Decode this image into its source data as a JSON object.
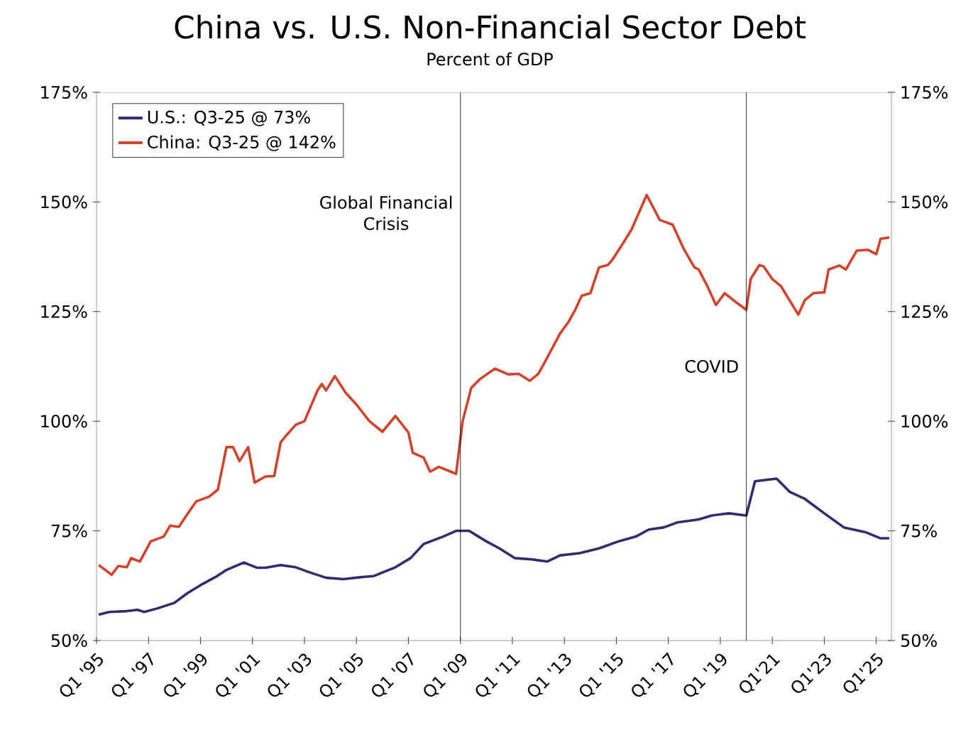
{
  "chart_data": {
    "type": "line",
    "title": "China vs. U.S. Non-Financial Sector Debt",
    "subtitle": "Percent of GDP",
    "xlim": [
      "1995-01",
      "2025-08"
    ],
    "xticks": [
      {
        "value": "1995-01",
        "label": "Q1 '95"
      },
      {
        "value": "1997-01",
        "label": "Q1 '97"
      },
      {
        "value": "1999-01",
        "label": "Q1 '99"
      },
      {
        "value": "2001-01",
        "label": "Q1 '01"
      },
      {
        "value": "2003-01",
        "label": "Q1 '03"
      },
      {
        "value": "2005-01",
        "label": "Q1 '05"
      },
      {
        "value": "2007-01",
        "label": "Q1 '07"
      },
      {
        "value": "2009-01",
        "label": "Q1 '09"
      },
      {
        "value": "2011-01",
        "label": "Q1 '11"
      },
      {
        "value": "2013-01",
        "label": "Q1 '13"
      },
      {
        "value": "2015-01",
        "label": "Q1 '15"
      },
      {
        "value": "2017-01",
        "label": "Q1 '17"
      },
      {
        "value": "2019-01",
        "label": "Q1 '19"
      },
      {
        "value": "2021-01",
        "label": "Q1'21"
      },
      {
        "value": "2023-01",
        "label": "Q1'23"
      },
      {
        "value": "2025-01",
        "label": "Q1'25"
      }
    ],
    "ylim": [
      50,
      175
    ],
    "yticks": [
      {
        "value": 50,
        "label": "50%"
      },
      {
        "value": 75,
        "label": "75%"
      },
      {
        "value": 100,
        "label": "100%"
      },
      {
        "value": 125,
        "label": "125%"
      },
      {
        "value": 150,
        "label": "150%"
      },
      {
        "value": 175,
        "label": "175%"
      }
    ],
    "y2lim": [
      50,
      175
    ],
    "y2ticks": [
      {
        "value": 50,
        "label": "50%"
      },
      {
        "value": 75,
        "label": "75%"
      },
      {
        "value": 100,
        "label": "100%"
      },
      {
        "value": 125,
        "label": "125%"
      },
      {
        "value": 150,
        "label": "150%"
      },
      {
        "value": 175,
        "label": "175%"
      }
    ],
    "grid": false,
    "legend": "top left",
    "marker": "none",
    "line_style": "solid",
    "ref_lines": [
      {
        "axis": "x",
        "value": "2009-01",
        "label": "Global Financial Crisis",
        "color": "#000000"
      },
      {
        "axis": "x",
        "value": "2020-01",
        "label": "COVID",
        "color": "#000000"
      }
    ],
    "series": [
      {
        "name": "U.S.: Q3-25 @ 73%",
        "color": "#312b70",
        "x": [
          "1995-02",
          "1995-07",
          "1996-03",
          "1996-08",
          "1996-11",
          "1997-05",
          "1998-01",
          "1998-07",
          "1999-02",
          "1999-08",
          "2000-01",
          "2000-09",
          "2001-03",
          "2001-07",
          "2002-02",
          "2002-09",
          "2003-03",
          "2003-11",
          "2004-07",
          "2005-04",
          "2005-09",
          "2006-07",
          "2007-02",
          "2007-08",
          "2008-05",
          "2008-11",
          "2009-05",
          "2010-01",
          "2010-07",
          "2011-02",
          "2011-10",
          "2012-05",
          "2012-11",
          "2013-08",
          "2014-05",
          "2015-02",
          "2015-10",
          "2016-04",
          "2016-11",
          "2017-05",
          "2018-03",
          "2018-09",
          "2019-05",
          "2020-01",
          "2020-05",
          "2021-03",
          "2021-09",
          "2022-04",
          "2023-01",
          "2023-10",
          "2024-08",
          "2025-03",
          "2025-07"
        ],
        "values": [
          55.9,
          56.5,
          56.7,
          57.0,
          56.5,
          57.3,
          58.6,
          60.8,
          62.9,
          64.5,
          66.1,
          67.8,
          66.6,
          66.6,
          67.2,
          66.7,
          65.6,
          64.3,
          64.0,
          64.5,
          64.7,
          66.7,
          68.8,
          72.0,
          73.7,
          75.0,
          75.0,
          72.6,
          71.0,
          68.8,
          68.5,
          68.0,
          69.4,
          69.9,
          71.0,
          72.6,
          73.7,
          75.3,
          75.8,
          76.9,
          77.6,
          78.5,
          79.0,
          78.5,
          86.3,
          86.9,
          83.9,
          82.3,
          79.0,
          75.8,
          74.7,
          73.3,
          73.3
        ]
      },
      {
        "name": "China: Q3-25 @ 142%",
        "color": "#d2432b",
        "x": [
          "1995-02",
          "1995-08",
          "1995-11",
          "1996-03",
          "1996-05",
          "1996-09",
          "1997-02",
          "1997-08",
          "1997-11",
          "1998-03",
          "1998-08",
          "1998-11",
          "1999-05",
          "1999-09",
          "2000-01",
          "2000-04",
          "2000-07",
          "2000-11",
          "2001-02",
          "2001-07",
          "2001-11",
          "2002-02",
          "2002-05",
          "2002-09",
          "2003-01",
          "2003-07",
          "2003-09",
          "2003-11",
          "2004-03",
          "2004-08",
          "2005-01",
          "2005-07",
          "2006-01",
          "2006-07",
          "2007-01",
          "2007-03",
          "2007-08",
          "2007-11",
          "2008-03",
          "2008-11",
          "2009-02",
          "2009-06",
          "2009-10",
          "2010-05",
          "2010-11",
          "2011-04",
          "2011-09",
          "2012-01",
          "2012-04",
          "2012-11",
          "2013-03",
          "2013-06",
          "2013-09",
          "2014-01",
          "2014-05",
          "2014-09",
          "2014-11",
          "2015-04",
          "2015-08",
          "2016-03",
          "2016-09",
          "2017-03",
          "2017-08",
          "2018-01",
          "2018-03",
          "2018-07",
          "2018-11",
          "2019-03",
          "2019-07",
          "2020-01",
          "2020-03",
          "2020-07",
          "2020-09",
          "2021-01",
          "2021-05",
          "2022-01",
          "2022-04",
          "2022-08",
          "2023-01",
          "2023-03",
          "2023-08",
          "2023-11",
          "2024-04",
          "2024-09",
          "2025-01",
          "2025-03",
          "2025-07"
        ],
        "values": [
          67.2,
          65.0,
          67.0,
          66.7,
          68.8,
          68.0,
          72.6,
          73.7,
          76.2,
          75.9,
          79.6,
          81.7,
          82.8,
          84.4,
          94.1,
          94.1,
          90.9,
          94.1,
          86.0,
          87.4,
          87.5,
          95.2,
          97.0,
          99.2,
          100.0,
          107.0,
          108.5,
          107.0,
          110.3,
          106.5,
          103.8,
          100.0,
          97.6,
          101.2,
          97.4,
          92.8,
          91.7,
          88.5,
          89.6,
          88.0,
          100.0,
          107.6,
          109.6,
          112.0,
          110.7,
          110.8,
          109.2,
          110.8,
          113.5,
          120.0,
          122.7,
          125.4,
          128.6,
          129.2,
          135.1,
          135.6,
          136.7,
          140.5,
          143.7,
          151.6,
          145.9,
          144.8,
          139.4,
          135.1,
          134.6,
          130.8,
          126.5,
          129.2,
          127.6,
          125.4,
          132.4,
          135.6,
          135.3,
          132.4,
          130.8,
          124.3,
          127.6,
          129.2,
          129.4,
          134.6,
          135.5,
          134.6,
          138.9,
          139.1,
          138.1,
          141.6,
          141.9
        ]
      }
    ]
  }
}
